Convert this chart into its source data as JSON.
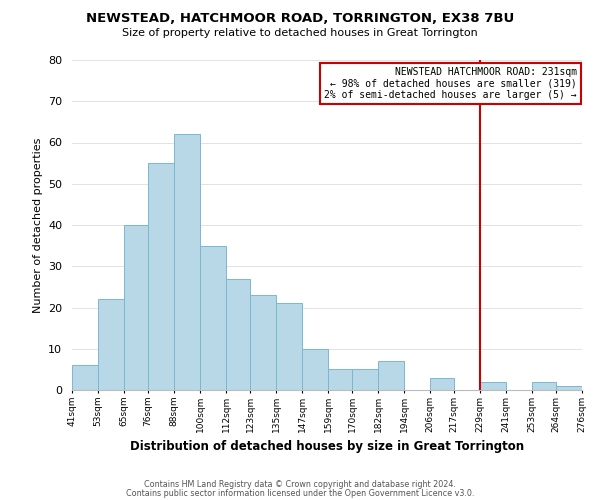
{
  "title": "NEWSTEAD, HATCHMOOR ROAD, TORRINGTON, EX38 7BU",
  "subtitle": "Size of property relative to detached houses in Great Torrington",
  "xlabel": "Distribution of detached houses by size in Great Torrington",
  "ylabel": "Number of detached properties",
  "bar_heights": [
    6,
    22,
    40,
    55,
    62,
    35,
    27,
    23,
    21,
    10,
    5,
    5,
    7,
    0,
    3,
    0,
    2,
    0,
    2,
    1
  ],
  "bin_edges": [
    41,
    53,
    65,
    76,
    88,
    100,
    112,
    123,
    135,
    147,
    159,
    170,
    182,
    194,
    206,
    217,
    229,
    241,
    253,
    264,
    276
  ],
  "tick_labels": [
    "41sqm",
    "53sqm",
    "65sqm",
    "76sqm",
    "88sqm",
    "100sqm",
    "112sqm",
    "123sqm",
    "135sqm",
    "147sqm",
    "159sqm",
    "170sqm",
    "182sqm",
    "194sqm",
    "206sqm",
    "217sqm",
    "229sqm",
    "241sqm",
    "253sqm",
    "264sqm",
    "276sqm"
  ],
  "bar_color": "#b8d8e8",
  "bar_edge_color": "#7ab8d0",
  "reference_line_x": 229,
  "reference_line_color": "#cc0000",
  "legend_title": "NEWSTEAD HATCHMOOR ROAD: 231sqm",
  "legend_line1": "← 98% of detached houses are smaller (319)",
  "legend_line2": "2% of semi-detached houses are larger (5) →",
  "legend_box_color": "#cc0000",
  "ylim": [
    0,
    80
  ],
  "yticks": [
    0,
    10,
    20,
    30,
    40,
    50,
    60,
    70,
    80
  ],
  "footer_line1": "Contains HM Land Registry data © Crown copyright and database right 2024.",
  "footer_line2": "Contains public sector information licensed under the Open Government Licence v3.0.",
  "background_color": "#ffffff"
}
